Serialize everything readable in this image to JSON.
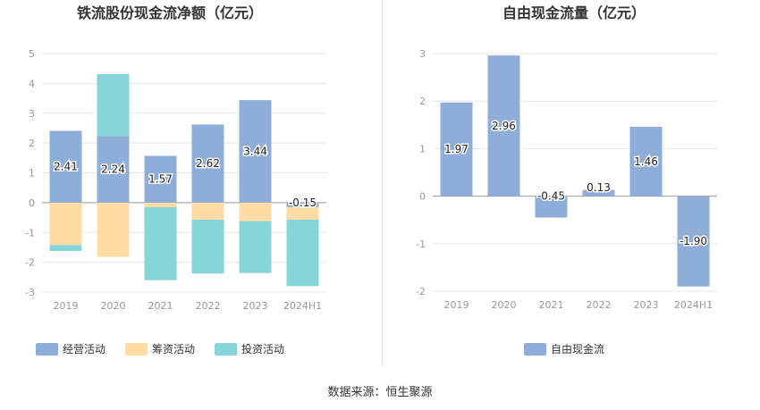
{
  "source": "数据来源：恒生聚源",
  "colors": {
    "operating": "#8eadd9",
    "financing": "#ffdca3",
    "investing": "#87d5d8",
    "free": "#8eadd9",
    "grid": "#e8e8e8",
    "axis": "#999999",
    "text": "#333333"
  },
  "chart_data": [
    {
      "type": "bar",
      "stacked": true,
      "title": "铁流股份现金流净额（亿元）",
      "categories": [
        "2019",
        "2020",
        "2021",
        "2022",
        "2023",
        "2024H1"
      ],
      "ylim": [
        -3,
        5
      ],
      "yticks": [
        5,
        4,
        3,
        2,
        1,
        0,
        -1,
        -2,
        -3
      ],
      "grid": true,
      "legend_position": "bottom",
      "series": [
        {
          "name": "经营活动",
          "color_key": "operating",
          "values": [
            2.41,
            2.24,
            1.57,
            2.62,
            3.44,
            -0.15
          ],
          "labels": [
            "2.41",
            "2.24",
            "1.57",
            "2.62",
            "3.44",
            "-0.15"
          ]
        },
        {
          "name": "筹资活动",
          "color_key": "financing",
          "values": [
            -1.42,
            -1.82,
            -0.15,
            -0.57,
            -0.62,
            -0.42
          ]
        },
        {
          "name": "投资活动",
          "color_key": "investing",
          "values": [
            -0.2,
            2.07,
            -2.45,
            -1.81,
            -1.74,
            -2.23
          ]
        }
      ]
    },
    {
      "type": "bar",
      "title": "自由现金流量（亿元）",
      "categories": [
        "2019",
        "2020",
        "2021",
        "2022",
        "2023",
        "2024H1"
      ],
      "ylim": [
        -2,
        3
      ],
      "yticks": [
        3,
        2,
        1,
        0,
        -1,
        -2
      ],
      "grid": true,
      "legend_position": "bottom",
      "series": [
        {
          "name": "自由现金流",
          "color_key": "free",
          "values": [
            1.97,
            2.96,
            -0.45,
            0.13,
            1.46,
            -1.9
          ],
          "labels": [
            "1.97",
            "2.96",
            "-0.45",
            "0.13",
            "1.46",
            "-1.90"
          ]
        }
      ]
    }
  ]
}
